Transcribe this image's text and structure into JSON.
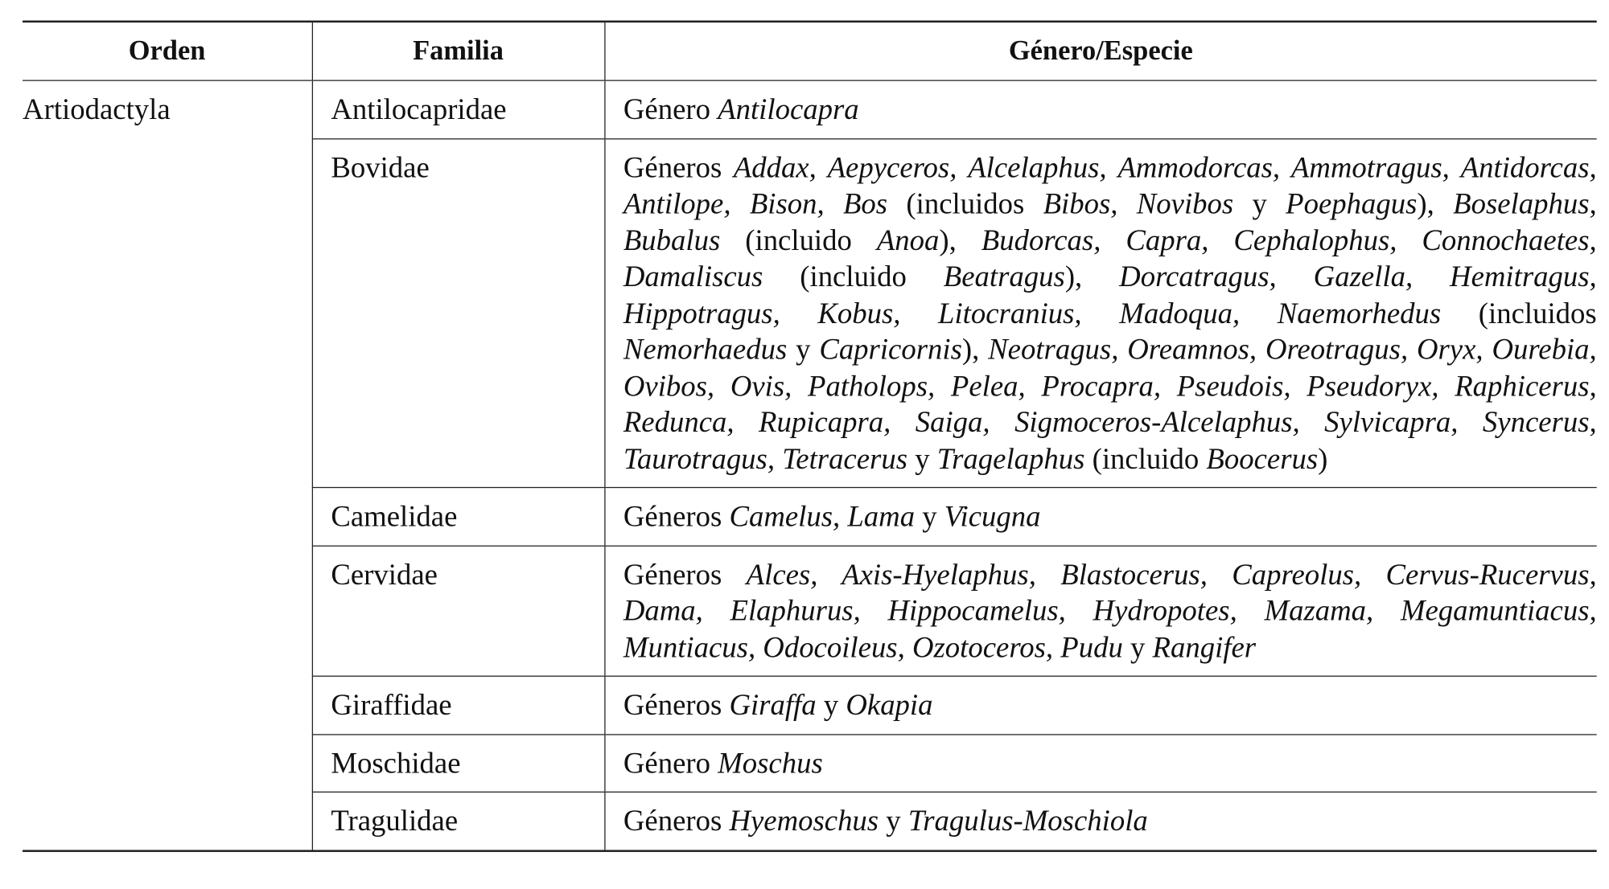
{
  "headers": {
    "orden": "Orden",
    "familia": "Familia",
    "genero": "Género/Especie"
  },
  "orden": "Artiodactyla",
  "rows": [
    {
      "familia": "Antilocapridae",
      "genero": [
        {
          "t": "Género ",
          "i": false
        },
        {
          "t": "Antilocapra",
          "i": true
        }
      ]
    },
    {
      "familia": "Bovidae",
      "genero": [
        {
          "t": "Géneros ",
          "i": false
        },
        {
          "t": "Addax, Aepyceros, Alcelaphus, Ammodorcas, Ammotragus, Antidorcas, Antilope, Bison, Bos",
          "i": true
        },
        {
          "t": " (incluidos ",
          "i": false
        },
        {
          "t": "Bibos, Novibos",
          "i": true
        },
        {
          "t": " y ",
          "i": false
        },
        {
          "t": "Poephagus",
          "i": true
        },
        {
          "t": "), ",
          "i": false
        },
        {
          "t": "Boselaphus, Bubalus",
          "i": true
        },
        {
          "t": " (incluido ",
          "i": false
        },
        {
          "t": "Anoa",
          "i": true
        },
        {
          "t": "), ",
          "i": false
        },
        {
          "t": "Budorcas, Capra, Cephalophus, Connochaetes, Damaliscus",
          "i": true
        },
        {
          "t": " (incluido ",
          "i": false
        },
        {
          "t": "Beatragus",
          "i": true
        },
        {
          "t": "), ",
          "i": false
        },
        {
          "t": "Dorcatragus, Gazella, Hemitragus, Hippotragus, Kobus, Litocranius, Madoqua, Naemorhedus",
          "i": true
        },
        {
          "t": " (incluidos ",
          "i": false
        },
        {
          "t": "Nemorhaedus",
          "i": true
        },
        {
          "t": " y ",
          "i": false
        },
        {
          "t": "Capricornis",
          "i": true
        },
        {
          "t": "), ",
          "i": false
        },
        {
          "t": "Neotragus, Oreamnos, Oreotragus, Oryx, Ourebia, Ovibos, Ovis, Patholops, Pelea, Procapra, Pseudois, Pseudoryx, Raphicerus, Redunca, Rupicapra, Saiga, Sigmoceros-Alcelaphus, Sylvicapra, Syncerus, Taurotragus, Tetracerus",
          "i": true
        },
        {
          "t": " y ",
          "i": false
        },
        {
          "t": "Tragelaphus",
          "i": true
        },
        {
          "t": " (incluido ",
          "i": false
        },
        {
          "t": "Boocerus",
          "i": true
        },
        {
          "t": ")",
          "i": false
        }
      ]
    },
    {
      "familia": "Camelidae",
      "genero": [
        {
          "t": "Géneros ",
          "i": false
        },
        {
          "t": "Camelus, Lama",
          "i": true
        },
        {
          "t": " y ",
          "i": false
        },
        {
          "t": "Vicugna",
          "i": true
        }
      ]
    },
    {
      "familia": "Cervidae",
      "genero": [
        {
          "t": "Géneros ",
          "i": false
        },
        {
          "t": "Alces, Axis-Hyelaphus, Blastocerus, Capreolus, Cervus-Rucervus, Dama, Elaphurus, Hippocamelus, Hydropotes, Mazama, Megamuntiacus, Muntiacus, Odocoileus, Ozotoceros, Pudu",
          "i": true
        },
        {
          "t": " y ",
          "i": false
        },
        {
          "t": "Rangifer",
          "i": true
        }
      ]
    },
    {
      "familia": "Giraffidae",
      "genero": [
        {
          "t": "Géneros ",
          "i": false
        },
        {
          "t": "Giraffa",
          "i": true
        },
        {
          "t": " y ",
          "i": false
        },
        {
          "t": "Okapia",
          "i": true
        }
      ]
    },
    {
      "familia": "Moschidae",
      "genero": [
        {
          "t": "Género ",
          "i": false
        },
        {
          "t": "Moschus",
          "i": true
        }
      ]
    },
    {
      "familia": "Tragulidae",
      "genero": [
        {
          "t": "Géneros ",
          "i": false
        },
        {
          "t": "Hyemoschus",
          "i": true
        },
        {
          "t": " y ",
          "i": false
        },
        {
          "t": "Tragulus-Moschiola",
          "i": true
        }
      ]
    }
  ]
}
